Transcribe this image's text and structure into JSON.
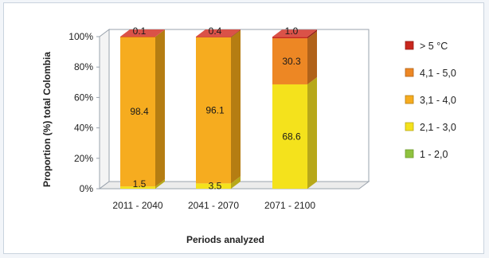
{
  "chart_data": {
    "type": "bar",
    "stacked": true,
    "three_d": true,
    "categories": [
      "2011 - 2040",
      "2041 - 2070",
      "2071 - 2100"
    ],
    "series": [
      {
        "name": "1 - 2,0",
        "values": [
          0,
          0,
          0
        ],
        "color": "#8fc23f",
        "side": "#6e9a2c",
        "top": "#b3db6a"
      },
      {
        "name": "2,1 - 3,0",
        "values": [
          1.5,
          3.5,
          68.6
        ],
        "color": "#f4e21c",
        "side": "#b7a81a",
        "top": "#f8ee6a"
      },
      {
        "name": "3,1 - 4,0",
        "values": [
          98.4,
          96.1,
          0
        ],
        "color": "#f6ac1f",
        "side": "#b57d12",
        "top": "#f9c963"
      },
      {
        "name": "4,1 - 5,0",
        "values": [
          0,
          0,
          30.3
        ],
        "color": "#ed8724",
        "side": "#b0621a",
        "top": "#f3aa5e"
      },
      {
        "name": "> 5 °C",
        "values": [
          0.1,
          0.4,
          1.0
        ],
        "color": "#c8271d",
        "side": "#941b14",
        "top": "#da5248"
      }
    ],
    "segment_labels": [
      [
        {
          "series": 1,
          "text": "1.5"
        },
        {
          "series": 2,
          "text": "98.4"
        },
        {
          "series": 4,
          "text": "0.1"
        }
      ],
      [
        {
          "series": 1,
          "text": "3.5"
        },
        {
          "series": 2,
          "text": "96.1"
        },
        {
          "series": 4,
          "text": "0.4"
        }
      ],
      [
        {
          "series": 1,
          "text": "68.6"
        },
        {
          "series": 3,
          "text": "30.3"
        },
        {
          "series": 4,
          "text": "1.0"
        }
      ]
    ],
    "legend_order": [
      4,
      3,
      2,
      1,
      0
    ],
    "legend_placement": "right",
    "xlabel": "Periods analyzed",
    "ylabel": "Proportion (%) total Colombia",
    "ylim": [
      0,
      100
    ],
    "yticks": [
      "0%",
      "20%",
      "40%",
      "60%",
      "80%",
      "100%"
    ],
    "grid": false,
    "wall_color": "#ffffff",
    "axis_color": "#9aa3ad"
  }
}
